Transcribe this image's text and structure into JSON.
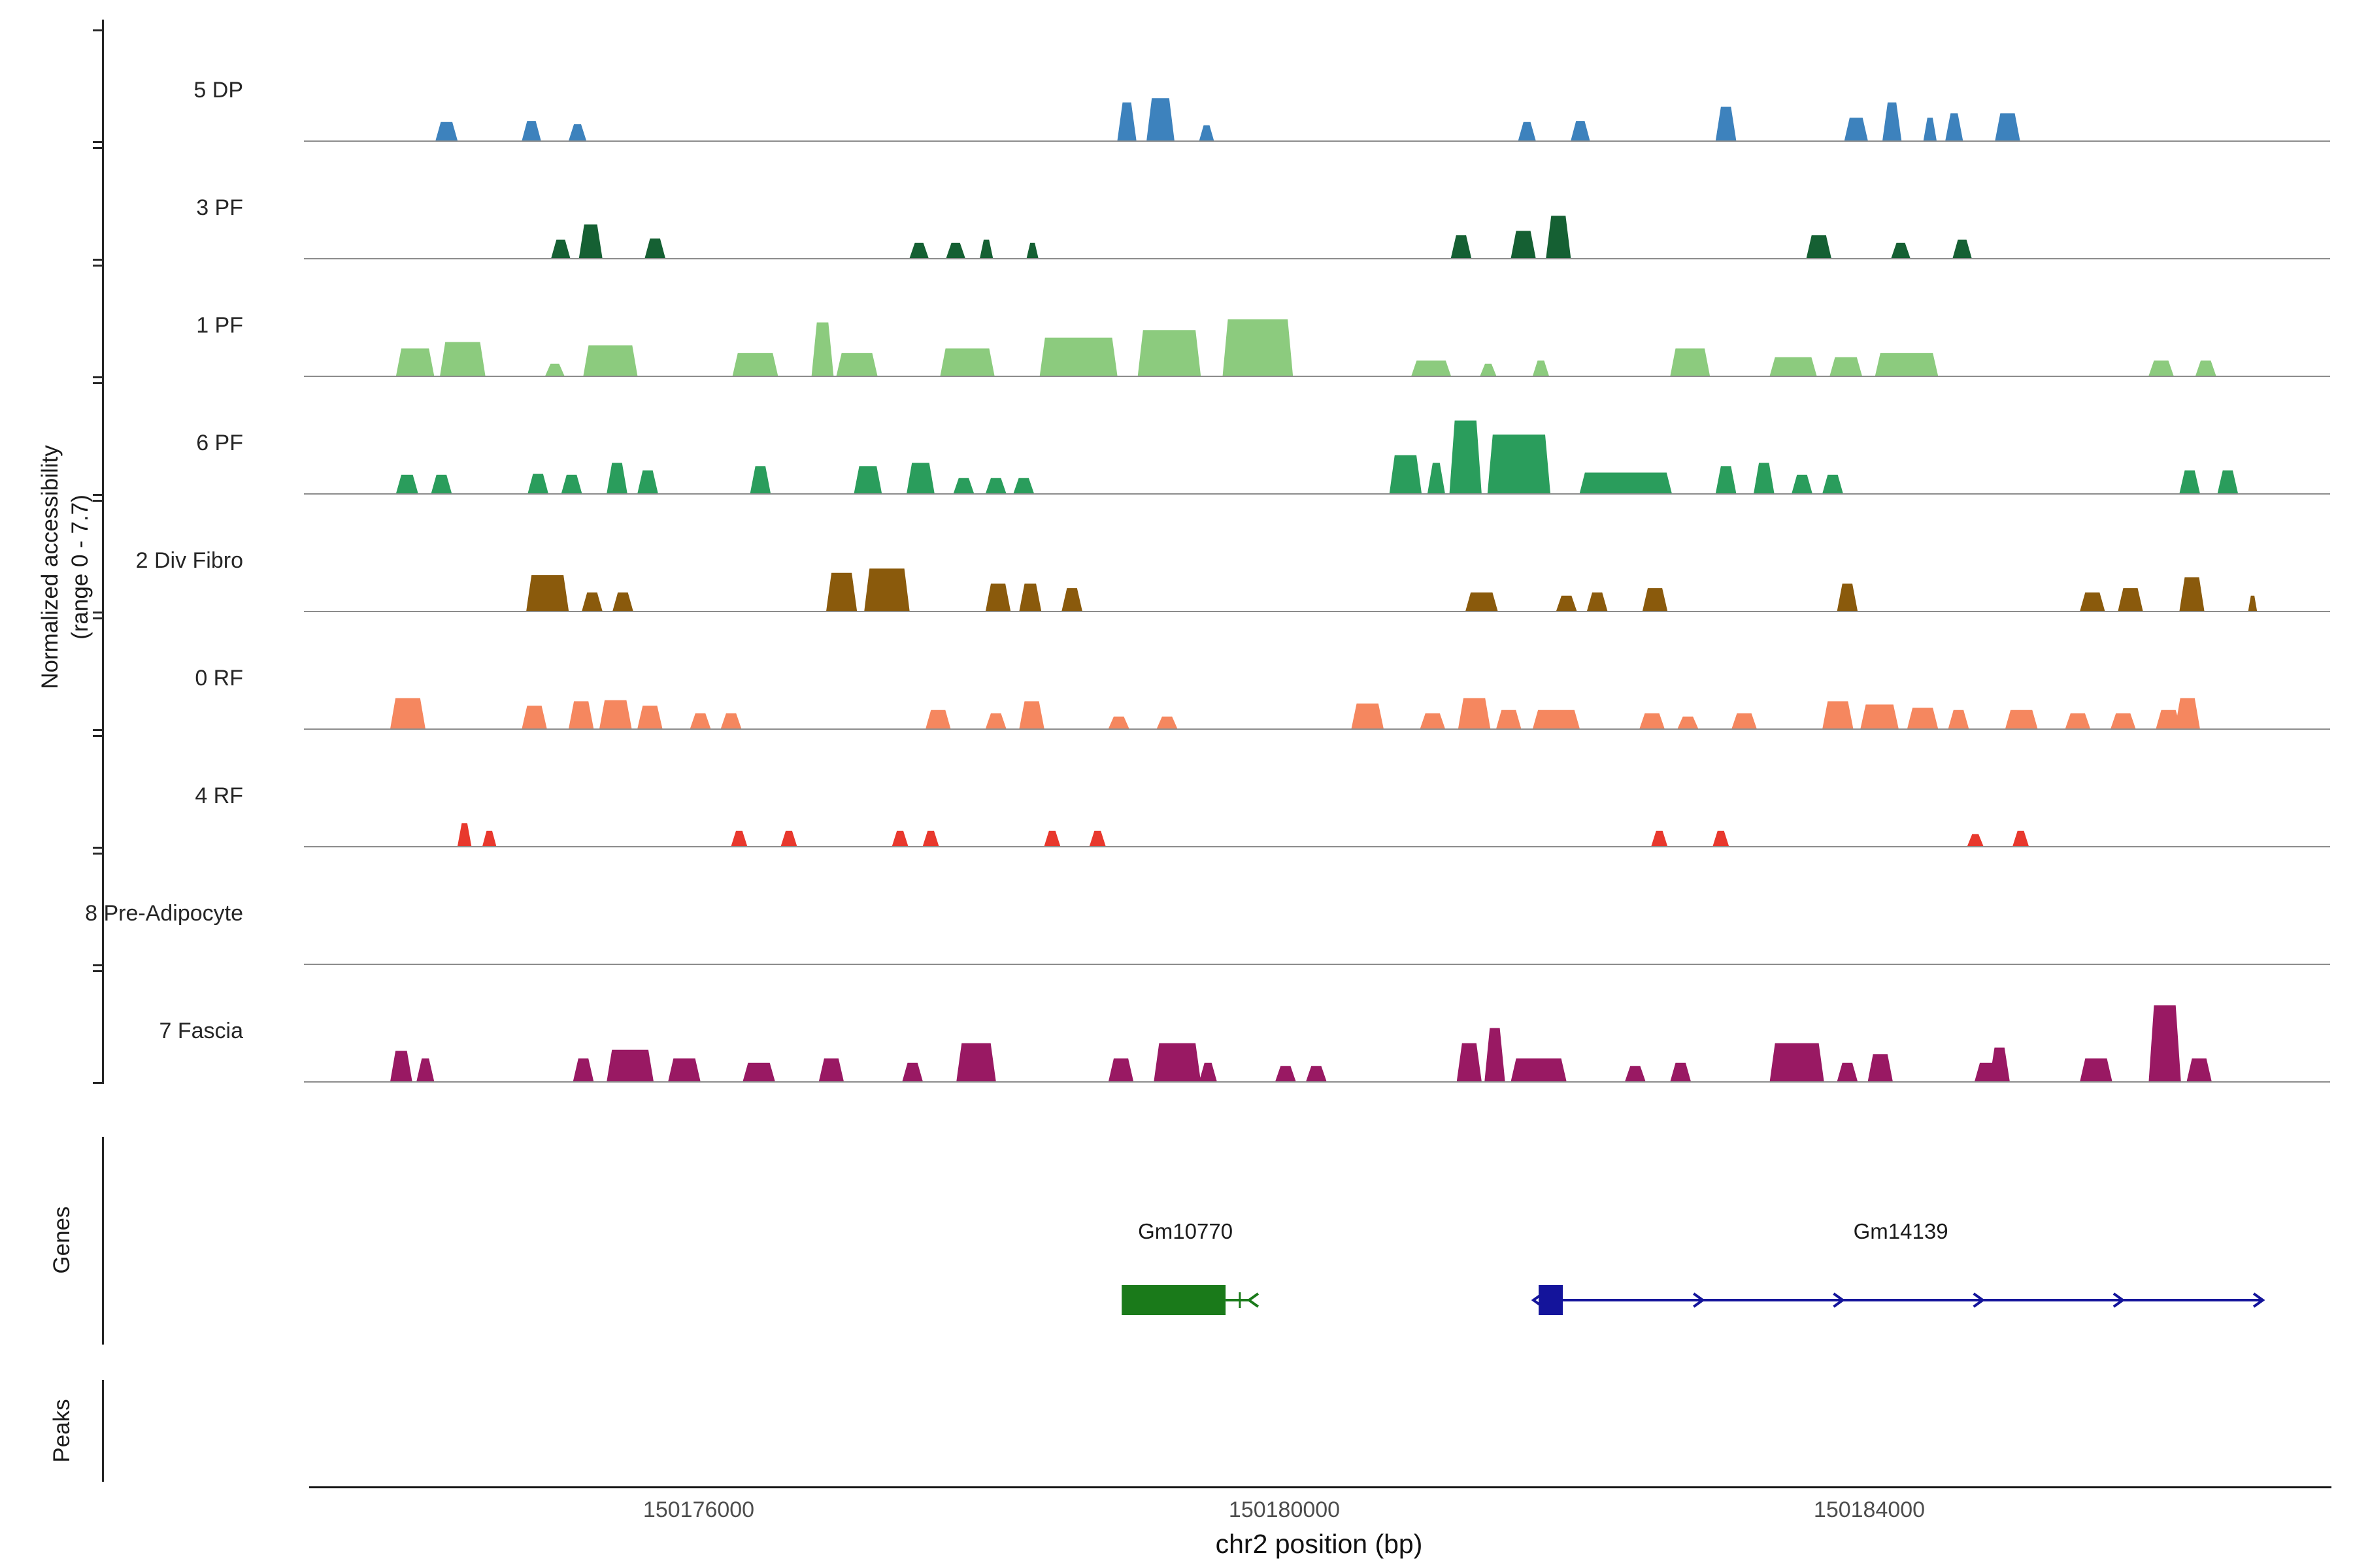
{
  "y_axis": {
    "label_line1": "Normalized accessibility",
    "label_line2": "(range 0 - 7.7)"
  },
  "x_axis": {
    "title": "chr2 position (bp)",
    "ticks": [
      150176000,
      150180000,
      150184000
    ],
    "tick_labels": [
      "150176000",
      "150180000",
      "150184000"
    ]
  },
  "sections": {
    "genes_label": "Genes",
    "peaks_label": "Peaks"
  },
  "chart_data": {
    "type": "area",
    "description": "Normalized chromatin accessibility coverage tracks per cluster along chr2; peaks given as [start_bp, width_bp, height_0_to_7.7]",
    "region": {
      "chrom": "chr2",
      "start": 150173300,
      "end": 150187150
    },
    "ylim": [
      0,
      7.7
    ],
    "tracks": [
      {
        "name": "5 DP",
        "color": "#3D82BD",
        "peaks": [
          [
            150174200,
            150,
            1.7
          ],
          [
            150174790,
            130,
            1.8
          ],
          [
            150175110,
            120,
            1.5
          ],
          [
            150178860,
            130,
            3.5
          ],
          [
            150179060,
            190,
            3.9
          ],
          [
            150179420,
            100,
            1.4
          ],
          [
            150181600,
            120,
            1.7
          ],
          [
            150181960,
            130,
            1.8
          ],
          [
            150182950,
            140,
            3.1
          ],
          [
            150183830,
            160,
            2.1
          ],
          [
            150184090,
            130,
            3.5
          ],
          [
            150184370,
            90,
            2.1
          ],
          [
            150184520,
            120,
            2.5
          ],
          [
            150184860,
            170,
            2.5
          ]
        ]
      },
      {
        "name": "3 PF",
        "color": "#156033",
        "peaks": [
          [
            150174990,
            130,
            1.7
          ],
          [
            150175180,
            160,
            3.1
          ],
          [
            150175630,
            140,
            1.8
          ],
          [
            150177440,
            130,
            1.4
          ],
          [
            150177690,
            130,
            1.4
          ],
          [
            150177920,
            90,
            1.7
          ],
          [
            150178240,
            80,
            1.4
          ],
          [
            150181140,
            140,
            2.1
          ],
          [
            150181550,
            170,
            2.5
          ],
          [
            150181790,
            170,
            3.9
          ],
          [
            150183570,
            170,
            2.1
          ],
          [
            150184150,
            130,
            1.4
          ],
          [
            150184570,
            130,
            1.7
          ]
        ]
      },
      {
        "name": "1 PF",
        "color": "#8CCB7E",
        "peaks": [
          [
            150173930,
            260,
            2.5
          ],
          [
            150174230,
            310,
            3.1
          ],
          [
            150174950,
            130,
            1.1
          ],
          [
            150175210,
            370,
            2.8
          ],
          [
            150176230,
            310,
            2.1
          ],
          [
            150176770,
            150,
            4.9
          ],
          [
            150176940,
            280,
            2.1
          ],
          [
            150177650,
            370,
            2.5
          ],
          [
            150178330,
            530,
            3.5
          ],
          [
            150179000,
            430,
            4.2
          ],
          [
            150179580,
            480,
            5.2
          ],
          [
            150180870,
            270,
            1.4
          ],
          [
            150181340,
            110,
            1.1
          ],
          [
            150181700,
            110,
            1.4
          ],
          [
            150182640,
            270,
            2.5
          ],
          [
            150183320,
            320,
            1.7
          ],
          [
            150183730,
            220,
            1.7
          ],
          [
            150184040,
            430,
            2.1
          ],
          [
            150185910,
            170,
            1.4
          ],
          [
            150186230,
            140,
            1.4
          ]
        ]
      },
      {
        "name": "6 PF",
        "color": "#2A9D5C",
        "peaks": [
          [
            150173930,
            150,
            1.7
          ],
          [
            150174170,
            140,
            1.7
          ],
          [
            150174830,
            140,
            1.8
          ],
          [
            150175060,
            140,
            1.7
          ],
          [
            150175370,
            140,
            2.8
          ],
          [
            150175580,
            140,
            2.1
          ],
          [
            150176350,
            140,
            2.5
          ],
          [
            150177060,
            190,
            2.5
          ],
          [
            150177420,
            190,
            2.8
          ],
          [
            150177740,
            140,
            1.4
          ],
          [
            150177960,
            140,
            1.4
          ],
          [
            150178150,
            140,
            1.4
          ],
          [
            150180720,
            220,
            3.5
          ],
          [
            150180980,
            120,
            2.8
          ],
          [
            150181130,
            220,
            6.7
          ],
          [
            150181390,
            430,
            5.4
          ],
          [
            150182020,
            630,
            1.9
          ],
          [
            150182950,
            140,
            2.5
          ],
          [
            150183210,
            140,
            2.8
          ],
          [
            150183470,
            140,
            1.7
          ],
          [
            150183680,
            140,
            1.7
          ],
          [
            150186120,
            140,
            2.1
          ],
          [
            150186380,
            140,
            2.1
          ]
        ]
      },
      {
        "name": "2 Div Fibro",
        "color": "#8A5A0C",
        "peaks": [
          [
            150174820,
            290,
            3.3
          ],
          [
            150175200,
            140,
            1.7
          ],
          [
            150175410,
            140,
            1.7
          ],
          [
            150176870,
            210,
            3.5
          ],
          [
            150177130,
            310,
            3.9
          ],
          [
            150177960,
            170,
            2.5
          ],
          [
            150178190,
            150,
            2.5
          ],
          [
            150178480,
            140,
            2.1
          ],
          [
            150181240,
            220,
            1.7
          ],
          [
            150181860,
            140,
            1.4
          ],
          [
            150182070,
            140,
            1.7
          ],
          [
            150182450,
            170,
            2.1
          ],
          [
            150183780,
            140,
            2.5
          ],
          [
            150185440,
            170,
            1.7
          ],
          [
            150185700,
            170,
            2.1
          ],
          [
            150186120,
            170,
            3.1
          ],
          [
            150186590,
            60,
            1.4
          ]
        ]
      },
      {
        "name": "0 RF",
        "color": "#F5875F",
        "peaks": [
          [
            150173890,
            240,
            2.8
          ],
          [
            150174790,
            170,
            2.1
          ],
          [
            150175110,
            170,
            2.5
          ],
          [
            150175320,
            220,
            2.6
          ],
          [
            150175580,
            170,
            2.1
          ],
          [
            150175940,
            140,
            1.4
          ],
          [
            150176150,
            140,
            1.4
          ],
          [
            150177550,
            170,
            1.7
          ],
          [
            150177960,
            140,
            1.4
          ],
          [
            150178190,
            170,
            2.5
          ],
          [
            150178800,
            140,
            1.1
          ],
          [
            150179130,
            140,
            1.1
          ],
          [
            150180460,
            220,
            2.3
          ],
          [
            150180930,
            170,
            1.4
          ],
          [
            150181190,
            220,
            2.8
          ],
          [
            150181450,
            170,
            1.7
          ],
          [
            150181700,
            320,
            1.7
          ],
          [
            150182430,
            170,
            1.4
          ],
          [
            150182690,
            140,
            1.1
          ],
          [
            150183060,
            170,
            1.4
          ],
          [
            150183680,
            210,
            2.5
          ],
          [
            150183940,
            260,
            2.2
          ],
          [
            150184260,
            210,
            1.9
          ],
          [
            150184540,
            140,
            1.7
          ],
          [
            150184930,
            220,
            1.7
          ],
          [
            150185340,
            170,
            1.4
          ],
          [
            150185650,
            170,
            1.4
          ],
          [
            150185960,
            170,
            1.7
          ],
          [
            150186090,
            170,
            2.8
          ]
        ]
      },
      {
        "name": "4 RF",
        "color": "#E8382D",
        "peaks": [
          [
            150174350,
            95,
            2.1
          ],
          [
            150174520,
            95,
            1.4
          ],
          [
            150176220,
            110,
            1.4
          ],
          [
            150176560,
            110,
            1.4
          ],
          [
            150177320,
            110,
            1.4
          ],
          [
            150177530,
            110,
            1.4
          ],
          [
            150178360,
            110,
            1.4
          ],
          [
            150178670,
            110,
            1.4
          ],
          [
            150182510,
            110,
            1.4
          ],
          [
            150182930,
            110,
            1.4
          ],
          [
            150184670,
            110,
            1.1
          ],
          [
            150184980,
            110,
            1.4
          ]
        ]
      },
      {
        "name": "8 Pre-Adipocyte",
        "color": null,
        "peaks": []
      },
      {
        "name": "7 Fascia",
        "color": "#991963",
        "peaks": [
          [
            150173890,
            150,
            2.8
          ],
          [
            150174070,
            120,
            2.1
          ],
          [
            150175140,
            140,
            2.1
          ],
          [
            150175370,
            320,
            2.9
          ],
          [
            150175790,
            220,
            2.1
          ],
          [
            150176300,
            220,
            1.7
          ],
          [
            150176820,
            170,
            2.1
          ],
          [
            150177390,
            140,
            1.7
          ],
          [
            150177760,
            270,
            3.5
          ],
          [
            150178800,
            170,
            2.1
          ],
          [
            150179110,
            320,
            3.5
          ],
          [
            150179420,
            120,
            1.7
          ],
          [
            150179940,
            140,
            1.4
          ],
          [
            150180150,
            140,
            1.4
          ],
          [
            150181180,
            170,
            3.5
          ],
          [
            150181370,
            140,
            4.9
          ],
          [
            150181550,
            380,
            2.1
          ],
          [
            150182330,
            140,
            1.4
          ],
          [
            150182640,
            140,
            1.7
          ],
          [
            150183320,
            370,
            3.5
          ],
          [
            150183780,
            140,
            1.7
          ],
          [
            150183990,
            170,
            2.5
          ],
          [
            150184720,
            170,
            1.7
          ],
          [
            150184820,
            140,
            3.1
          ],
          [
            150185440,
            220,
            2.1
          ],
          [
            150185910,
            220,
            7.0
          ],
          [
            150186170,
            170,
            2.1
          ]
        ]
      }
    ],
    "genes": [
      {
        "name": "Gm10770",
        "color": "#1A7A1A",
        "strand": "-",
        "box": [
          150178890,
          150179600
        ],
        "line_end": 150179760
      },
      {
        "name": "Gm14139",
        "color": "#14149B",
        "strand": "+",
        "box": [
          150181740,
          150181905
        ],
        "line_end": 150186690
      }
    ],
    "peaks": []
  }
}
